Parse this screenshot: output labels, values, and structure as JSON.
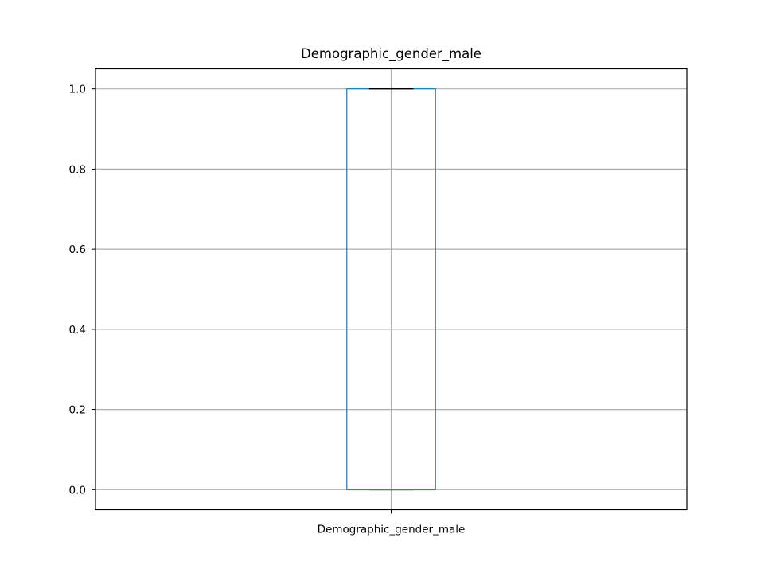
{
  "chart_data": {
    "type": "boxplot",
    "title": "Demographic_gender_male",
    "xlabel": "",
    "ylabel": "",
    "categories": [
      "Demographic_gender_male"
    ],
    "boxes": [
      {
        "category": "Demographic_gender_male",
        "whisker_low": 0.0,
        "q1": 0.0,
        "median": 0.0,
        "q3": 1.0,
        "whisker_high": 1.0
      }
    ],
    "yticks": [
      0.0,
      0.2,
      0.4,
      0.6,
      0.8,
      1.0
    ],
    "ytick_labels": [
      "0.0",
      "0.2",
      "0.4",
      "0.6",
      "0.8",
      "1.0"
    ],
    "ylim": [
      -0.05,
      1.05
    ],
    "grid": true,
    "colors": {
      "box": "#1f77b4",
      "median": "#2ca02c",
      "whisker": "#000000",
      "grid": "#b0b0b0",
      "axes": "#000000"
    }
  }
}
